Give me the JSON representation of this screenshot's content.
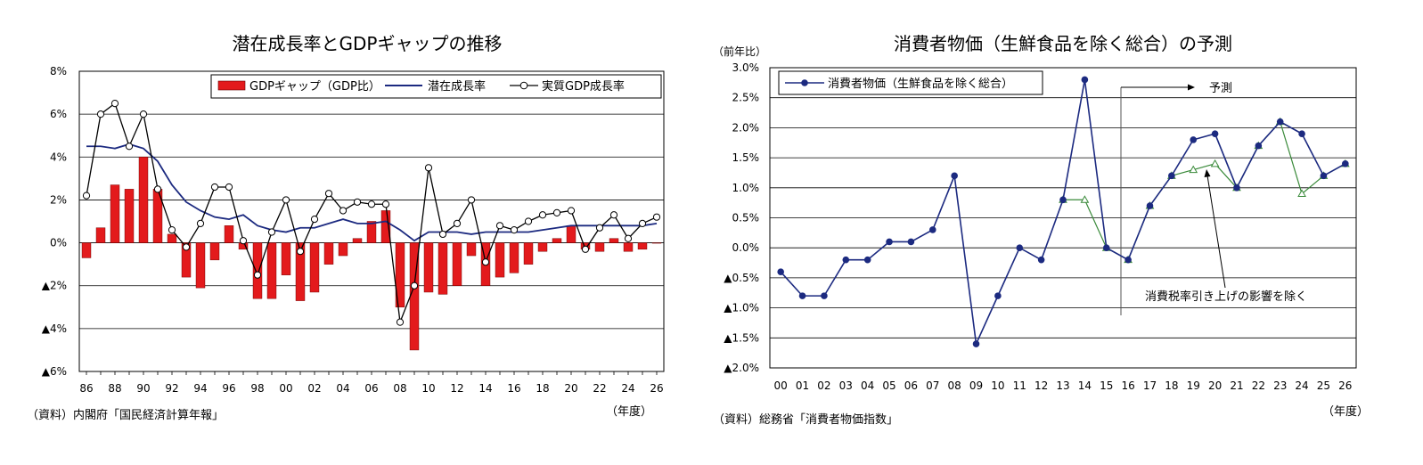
{
  "chart_data": [
    {
      "type": "bar",
      "title": "潜在成長率とGDPギャップの推移",
      "source": "（資料）内閣府「国民経済計算年報」",
      "x_unit": "（年度）",
      "ylim": [
        -6,
        8
      ],
      "y_ticks": [
        8,
        6,
        4,
        2,
        0,
        -2,
        -4,
        -6
      ],
      "y_tick_labels": [
        "8%",
        "6%",
        "4%",
        "2%",
        "0%",
        "▲2%",
        "▲4%",
        "▲6%"
      ],
      "x": [
        86,
        87,
        88,
        89,
        90,
        91,
        92,
        93,
        94,
        95,
        96,
        97,
        98,
        99,
        "00",
        "01",
        "02",
        "03",
        "04",
        "05",
        "06",
        "07",
        "08",
        "09",
        "10",
        "11",
        "12",
        "13",
        "14",
        "15",
        "16",
        "17",
        "18",
        "19",
        "20",
        "21",
        "22",
        "23",
        "24",
        "25",
        "26"
      ],
      "x_tick_labels": [
        "86",
        "88",
        "90",
        "92",
        "94",
        "96",
        "98",
        "00",
        "02",
        "04",
        "06",
        "08",
        "10",
        "12",
        "14",
        "16",
        "18",
        "20",
        "22",
        "24",
        "26"
      ],
      "legend_position": "top-right",
      "grid": true,
      "series": [
        {
          "name": "GDPギャップ（GDP比）",
          "type": "bar",
          "color": "#e31a1c",
          "values": [
            -0.7,
            0.7,
            2.7,
            2.5,
            4.0,
            2.5,
            0.4,
            -1.6,
            -2.1,
            -0.8,
            0.8,
            -0.3,
            -2.6,
            -2.6,
            -1.5,
            -2.7,
            -2.3,
            -1.0,
            -0.6,
            0.2,
            1.0,
            1.5,
            -3.0,
            -5.0,
            -2.3,
            -2.4,
            -2.0,
            -0.6,
            -2.0,
            -1.6,
            -1.4,
            -1.0,
            -0.4,
            0.2,
            0.8,
            -0.3,
            -0.4,
            0.2,
            -0.4,
            -0.3,
            0.0
          ]
        },
        {
          "name": "潜在成長率",
          "type": "line",
          "color": "#1c2a80",
          "values": [
            4.5,
            4.5,
            4.4,
            4.6,
            4.4,
            3.8,
            2.7,
            1.9,
            1.5,
            1.2,
            1.1,
            1.3,
            0.8,
            0.6,
            0.5,
            0.7,
            0.7,
            0.9,
            1.1,
            0.9,
            0.9,
            1.0,
            0.6,
            0.1,
            0.5,
            0.5,
            0.5,
            0.4,
            0.5,
            0.5,
            0.5,
            0.5,
            0.6,
            0.7,
            0.8,
            0.8,
            0.8,
            0.8,
            0.8,
            0.8,
            0.9
          ]
        },
        {
          "name": "実質GDP成長率",
          "type": "line_marker",
          "color": "#000000",
          "values": [
            2.2,
            6.0,
            6.5,
            4.5,
            6.0,
            2.5,
            0.6,
            -0.2,
            0.9,
            2.6,
            2.6,
            0.1,
            -1.5,
            0.5,
            2.0,
            -0.4,
            1.1,
            2.3,
            1.5,
            1.9,
            1.8,
            1.8,
            -3.7,
            -2.0,
            3.5,
            0.4,
            0.9,
            2.0,
            -0.9,
            0.8,
            0.6,
            1.0,
            1.3,
            1.4,
            1.5,
            -0.3,
            0.7,
            1.3,
            0.2,
            0.9,
            1.2
          ]
        }
      ]
    },
    {
      "type": "line",
      "title": "消費者物価（生鮮食品を除く総合）の予測",
      "y_unit": "（前年比）",
      "source": "（資料）総務省「消費者物価指数」",
      "x_unit": "（年度）",
      "ylim": [
        -2.0,
        3.0
      ],
      "y_ticks": [
        3.0,
        2.5,
        2.0,
        1.5,
        1.0,
        0.5,
        0.0,
        -0.5,
        -1.0,
        -1.5,
        -2.0
      ],
      "y_tick_labels": [
        "3.0%",
        "2.5%",
        "2.0%",
        "1.5%",
        "1.0%",
        "0.5%",
        "0.0%",
        "▲0.5%",
        "▲1.0%",
        "▲1.5%",
        "▲2.0%"
      ],
      "x": [
        "00",
        "01",
        "02",
        "03",
        "04",
        "05",
        "06",
        "07",
        "08",
        "09",
        "10",
        "11",
        "12",
        "13",
        "14",
        "15",
        "16",
        "17",
        "18",
        "19",
        "20",
        "21",
        "22",
        "23",
        "24",
        "25",
        "26"
      ],
      "legend_position": "top-left",
      "grid": true,
      "series": [
        {
          "name": "消費者物価（生鮮食品を除く総合）",
          "color": "#1c2a80",
          "values": [
            -0.4,
            -0.8,
            -0.8,
            -0.2,
            -0.2,
            0.1,
            0.1,
            0.3,
            1.2,
            -1.6,
            -0.8,
            0.0,
            -0.2,
            0.8,
            2.8,
            0.0,
            -0.2,
            0.7,
            1.2,
            1.8,
            1.9,
            1.0,
            1.7,
            2.1,
            1.9,
            1.2,
            1.4
          ]
        },
        {
          "name": "",
          "color": "#3a8a3a",
          "x": [
            "13",
            "14",
            "15",
            "16",
            "17",
            "18",
            "19",
            "20",
            "21",
            "22",
            "23",
            "24",
            "25",
            "26"
          ],
          "values": [
            0.8,
            0.8,
            0.0,
            -0.2,
            0.7,
            1.2,
            1.3,
            1.4,
            1.0,
            1.7,
            2.1,
            0.9,
            1.2,
            1.4
          ]
        }
      ],
      "annotations": {
        "forecast": "予測",
        "tax_note": "消費税率引き上げの影響を除く"
      }
    }
  ]
}
